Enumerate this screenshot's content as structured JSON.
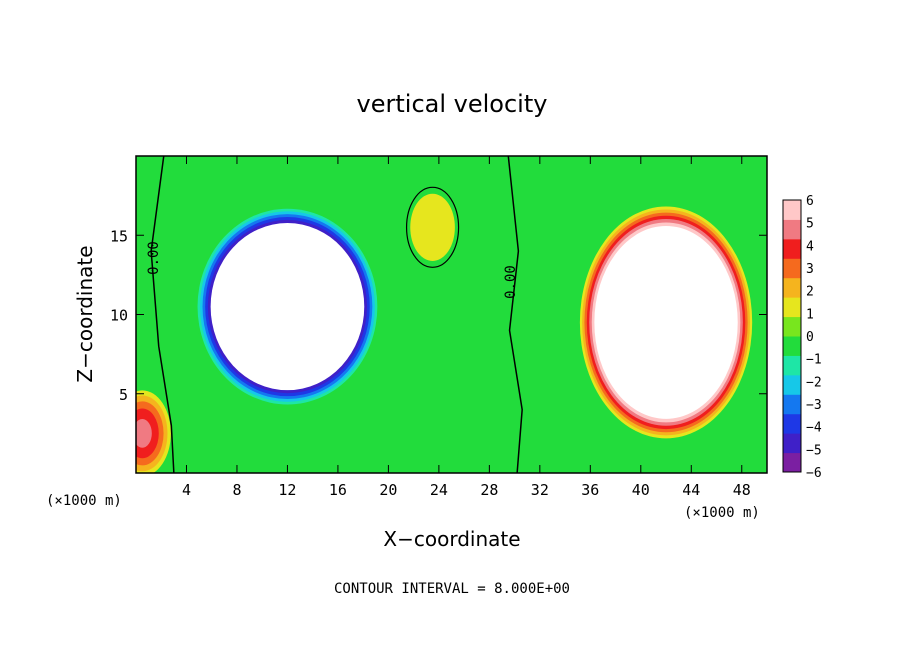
{
  "chart_data": {
    "type": "heatmap",
    "title": "vertical velocity",
    "xlabel": "X−coordinate",
    "ylabel": "Z−coordinate",
    "x_unit": "(×1000 m)",
    "y_unit": "(×1000 m)",
    "xlim": [
      0,
      50
    ],
    "ylim": [
      0,
      20
    ],
    "x_ticks": [
      4,
      8,
      12,
      16,
      20,
      24,
      28,
      32,
      36,
      40,
      44,
      48
    ],
    "y_ticks": [
      5,
      10,
      15
    ],
    "x_tick_labels": [
      "4",
      "8",
      "12",
      "16",
      "20",
      "24",
      "28",
      "32",
      "36",
      "40",
      "44",
      "48"
    ],
    "y_tick_labels": [
      "5",
      "10",
      "15"
    ],
    "colorbar": {
      "levels": [
        -6,
        -5,
        -4,
        -3,
        -2,
        -1,
        0,
        1,
        2,
        3,
        4,
        5,
        6
      ],
      "labels": [
        "−6",
        "−5",
        "−4",
        "−3",
        "−2",
        "−1",
        "0",
        "1",
        "2",
        "3",
        "4",
        "5",
        "6"
      ],
      "colors": [
        "#7b1fa2",
        "#3f20c8",
        "#1e38e6",
        "#1478f0",
        "#16c8e8",
        "#1ee6a6",
        "#22dc3c",
        "#78e61e",
        "#e6e61e",
        "#f5b41e",
        "#f56a1e",
        "#f01e1e",
        "#f07a82",
        "#ffc8c8"
      ]
    },
    "contour_labels": [
      "0.00",
      "0.00"
    ],
    "footer": "CONTOUR INTERVAL = 8.000E+00",
    "regions": [
      {
        "name": "downdraft",
        "center": [
          12,
          10.5
        ],
        "radius": [
          7.5,
          6.5
        ],
        "peak": -20
      },
      {
        "name": "updraft",
        "center": [
          42,
          9.5
        ],
        "radius": [
          7,
          7.5
        ],
        "peak": 20
      },
      {
        "name": "left-edge-updraft",
        "center": [
          0.5,
          2.5
        ],
        "radius": [
          2.5,
          3
        ],
        "peak": 5
      },
      {
        "name": "small-updraft",
        "center": [
          23.5,
          15.5
        ],
        "radius": [
          2.5,
          3
        ],
        "peak": 1.5
      }
    ]
  }
}
